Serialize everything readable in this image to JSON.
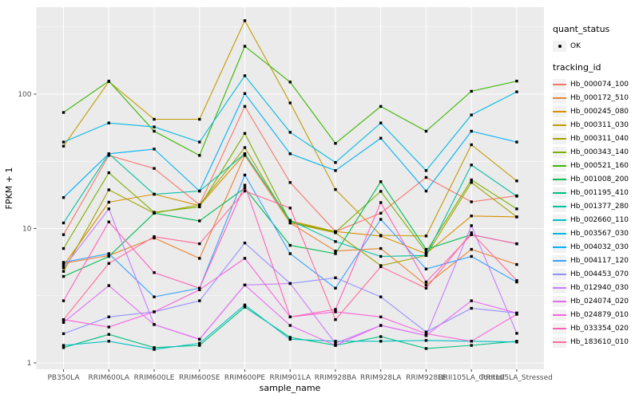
{
  "figure": {
    "background": "#FFFFFF",
    "panel_background": "#EBEBEB",
    "grid_color": "#FFFFFF",
    "tick_color": "#333333",
    "tick_label_color": "#4D4D4D",
    "legend_key_fill": "#F2F2F2",
    "point_color": "#000000"
  },
  "legend": {
    "quant_status_title": "quant_status",
    "quant_status_items": [
      {
        "label": "OK",
        "symbol": "point"
      }
    ],
    "tracking_title": "tracking_id"
  },
  "chart_data": {
    "type": "line",
    "title": "",
    "xlabel": "sample_name",
    "ylabel": "FPKM + 1",
    "y_scale": "log10",
    "y_ticks": [
      "1",
      "10",
      "100"
    ],
    "y_tick_values": [
      1,
      10,
      100
    ],
    "y_minor_tick_values": [
      3.162,
      31.62,
      316.2
    ],
    "ylim": [
      1,
      450
    ],
    "grid": true,
    "legend_position": "right",
    "point_shape": "filled-square",
    "categories": [
      "PB350LA",
      "RRIM600LA",
      "RRIM600LE",
      "RRIM600SE",
      "RRIM600PE",
      "RRIM901LA",
      "RRIM928BA",
      "RRIM928LA",
      "RRIM928LE",
      "RRII105LA_Control",
      "RRII105LA_Stressed"
    ],
    "series": [
      {
        "name": "Hb_000074_100",
        "color": "#F8766D",
        "values": [
          9.0,
          35,
          28,
          15,
          81,
          22,
          9.5,
          13,
          24,
          15.8,
          17.5
        ]
      },
      {
        "name": "Hb_000172_510",
        "color": "#EA8331",
        "values": [
          5.5,
          6.3,
          8.5,
          6.0,
          35,
          11,
          6.8,
          7.1,
          3.8,
          7.0,
          5.4
        ]
      },
      {
        "name": "Hb_000245_080",
        "color": "#D89000",
        "values": [
          5.3,
          15.7,
          18,
          14.8,
          36,
          11.4,
          9.5,
          8.8,
          6.5,
          12.4,
          12.2
        ]
      },
      {
        "name": "Hb_000311_030",
        "color": "#C09B00",
        "values": [
          41,
          124,
          65,
          65,
          352,
          86,
          19.5,
          8.9,
          8.8,
          42,
          22.6
        ]
      },
      {
        "name": "Hb_000311_040",
        "color": "#A3A500",
        "values": [
          4.8,
          19.4,
          13,
          15,
          40,
          11,
          9.3,
          5.3,
          6.3,
          22,
          12.2
        ]
      },
      {
        "name": "Hb_000343_140",
        "color": "#7CAE00",
        "values": [
          7.1,
          26,
          13.2,
          14.5,
          51,
          11.2,
          9.4,
          18.9,
          6.7,
          23,
          14
        ]
      },
      {
        "name": "Hb_000521_160",
        "color": "#39B600",
        "values": [
          73,
          125,
          53,
          35,
          227,
          123,
          43,
          81,
          53,
          105,
          125
        ]
      },
      {
        "name": "Hb_001008_200",
        "color": "#00BB4E",
        "values": [
          4.4,
          6.2,
          13,
          11.4,
          20,
          7.5,
          6.5,
          22.3,
          7.0,
          9.0,
          7.7
        ]
      },
      {
        "name": "Hb_001195_410",
        "color": "#00BF7D",
        "values": [
          1.3,
          1.63,
          1.3,
          1.35,
          2.6,
          1.55,
          1.35,
          1.57,
          1.28,
          1.35,
          1.45
        ]
      },
      {
        "name": "Hb_001377_280",
        "color": "#00C1A3",
        "values": [
          11,
          36,
          18,
          19,
          36,
          11.5,
          8.0,
          6.2,
          6.3,
          29.7,
          17.4
        ]
      },
      {
        "name": "Hb_002660_110",
        "color": "#00BFC4",
        "values": [
          1.35,
          1.45,
          1.26,
          1.4,
          2.7,
          1.5,
          1.45,
          1.45,
          1.47,
          1.45,
          1.43
        ]
      },
      {
        "name": "Hb_003567_030",
        "color": "#00BAE0",
        "values": [
          44,
          61,
          57,
          44,
          137,
          52,
          31,
          61,
          27,
          70,
          104
        ]
      },
      {
        "name": "Hb_004032_030",
        "color": "#00B0F6",
        "values": [
          17,
          36,
          39,
          19,
          101,
          36,
          27,
          47,
          19,
          53,
          44
        ]
      },
      {
        "name": "Hb_004117_120",
        "color": "#35A2FF",
        "values": [
          5.6,
          6.5,
          3.1,
          3.6,
          25,
          6.5,
          3.6,
          11.7,
          5.0,
          6.2,
          4.0
        ]
      },
      {
        "name": "Hb_004453_070",
        "color": "#9590FF",
        "values": [
          1.65,
          2.2,
          2.4,
          2.9,
          7.8,
          3.9,
          4.3,
          3.1,
          1.7,
          2.55,
          2.35
        ]
      },
      {
        "name": "Hb_012940_030",
        "color": "#C77CFF",
        "values": [
          5.1,
          14,
          1.93,
          1.5,
          3.8,
          3.9,
          1.4,
          1.9,
          1.6,
          10.5,
          1.66
        ]
      },
      {
        "name": "Hb_024074_020",
        "color": "#E76BF3",
        "values": [
          2.0,
          3.76,
          1.93,
          1.5,
          3.8,
          1.9,
          1.35,
          1.9,
          1.6,
          2.9,
          2.35
        ]
      },
      {
        "name": "Hb_024879_010",
        "color": "#FA62DB",
        "values": [
          2.1,
          1.85,
          2.4,
          3.5,
          6.0,
          2.2,
          2.4,
          2.2,
          1.65,
          1.45,
          2.3
        ]
      },
      {
        "name": "Hb_033354_020",
        "color": "#FF62BC",
        "values": [
          2.9,
          11.2,
          4.7,
          3.6,
          21,
          2.2,
          2.5,
          15.6,
          4.0,
          9.0,
          7.7
        ]
      },
      {
        "name": "Hb_183610_010",
        "color": "#FF6A98",
        "values": [
          2.1,
          5.5,
          8.7,
          7.7,
          19,
          14.2,
          2.1,
          5.2,
          3.6,
          9.3,
          4.1
        ]
      }
    ]
  }
}
